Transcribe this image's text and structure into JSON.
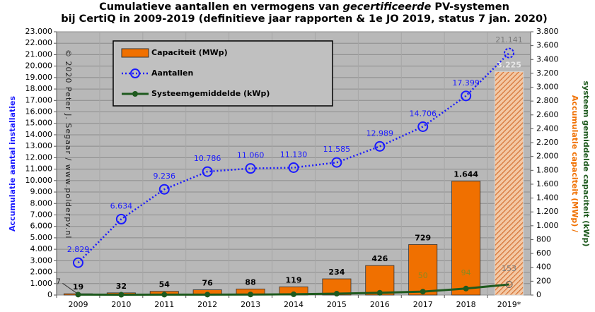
{
  "chart_data": {
    "type": "bar",
    "title_line1": [
      "Cumulatieve aantallen en vermogens van ",
      "gecertificeerde",
      " PV-systemen"
    ],
    "title_line2": "bij CertiQ in 2009-2019 (definitieve jaar rapporten & 1e JO 2019, status 7 jan. 2020)",
    "ylabel": "Accumulatie aantal installaties",
    "y2label": [
      "Accumulatie capaciteit (MWp) /",
      "systeem gemiddelde capaciteit (kWp)"
    ],
    "copyright": "© 2020 Peter J. Segaar / www.polderpv.nl",
    "categories": [
      "2009",
      "2010",
      "2011",
      "2012",
      "2013",
      "2014",
      "2015",
      "2016",
      "2017",
      "2018",
      "2019*"
    ],
    "series": [
      {
        "name": "Capaciteit (MWp)",
        "type": "bar",
        "axis": "y2",
        "color": "#f07000",
        "values": [
          19,
          32,
          54,
          76,
          88,
          119,
          234,
          426,
          729,
          1644,
          3225
        ],
        "value_labels": [
          "19",
          "32",
          "54",
          "76",
          "88",
          "119",
          "234",
          "426",
          "729",
          "1.644",
          "3.225"
        ]
      },
      {
        "name": "Aantallen",
        "type": "line",
        "axis": "y",
        "color": "#1a1aff",
        "values": [
          2829,
          6634,
          9236,
          10786,
          11060,
          11130,
          11585,
          12989,
          14706,
          17399,
          21141
        ],
        "value_labels": [
          "2.829",
          "6.634",
          "9.236",
          "10.786",
          "11.060",
          "11.130",
          "11.585",
          "12.989",
          "14.706",
          "17.399",
          "21.141"
        ]
      },
      {
        "name": "Systeemgemiddelde (kWp)",
        "type": "line",
        "axis": "y2",
        "color": "#1e5a1e",
        "values": [
          7,
          5,
          6,
          7,
          8,
          11,
          20,
          33,
          50,
          94,
          153
        ],
        "value_labels": [
          "7",
          null,
          null,
          null,
          null,
          null,
          null,
          null,
          "50",
          "94",
          "153"
        ]
      }
    ],
    "ylim": [
      0,
      23000
    ],
    "yticks": [
      0,
      {
        "value": 1000,
        "label": "1.000"
      },
      {
        "value": 2000,
        "label": "2.000"
      },
      {
        "value": 3000,
        "label": "3.000"
      },
      {
        "value": 4000,
        "label": "4.000"
      },
      {
        "value": 5000,
        "label": "5.000"
      },
      {
        "value": 6000,
        "label": "6.000"
      },
      {
        "value": 7000,
        "label": "7.000"
      },
      {
        "value": 8000,
        "label": "8.000"
      },
      {
        "value": 9000,
        "label": "9.000"
      },
      {
        "value": 10000,
        "label": "10.000"
      },
      {
        "value": 11000,
        "label": "11.000"
      },
      {
        "value": 12000,
        "label": "12.000"
      },
      {
        "value": 13000,
        "label": "13.000"
      },
      {
        "value": 14000,
        "label": "14.000"
      },
      {
        "value": 15000,
        "label": "15.000"
      },
      {
        "value": 16000,
        "label": "16.000"
      },
      {
        "value": 17000,
        "label": "17.000"
      },
      {
        "value": 18000,
        "label": "18.000"
      },
      {
        "value": 19000,
        "label": "19.000"
      },
      {
        "value": 20000,
        "label": "20.000"
      },
      {
        "value": 21000,
        "label": "21.000"
      },
      {
        "value": 22000,
        "label": "22.000"
      },
      {
        "value": 23000,
        "label": "23.000"
      }
    ],
    "y2lim": [
      0,
      3800
    ],
    "y2ticks": [
      0,
      200,
      400,
      600,
      800,
      {
        "value": 1000,
        "label": "1.000"
      },
      {
        "value": 1200,
        "label": "1.200"
      },
      {
        "value": 1400,
        "label": "1.400"
      },
      {
        "value": 1600,
        "label": "1.600"
      },
      {
        "value": 1800,
        "label": "1.800"
      },
      {
        "value": 2000,
        "label": "2.000"
      },
      {
        "value": 2200,
        "label": "2.200"
      },
      {
        "value": 2400,
        "label": "2.400"
      },
      {
        "value": 2600,
        "label": "2.600"
      },
      {
        "value": 2800,
        "label": "2.800"
      },
      {
        "value": 3000,
        "label": "3.000"
      },
      {
        "value": 3200,
        "label": "3.200"
      },
      {
        "value": 3400,
        "label": "3.400"
      },
      {
        "value": 3600,
        "label": "3.600"
      },
      {
        "value": 3800,
        "label": "3.800"
      }
    ],
    "grid": true,
    "legend": "upper left"
  }
}
